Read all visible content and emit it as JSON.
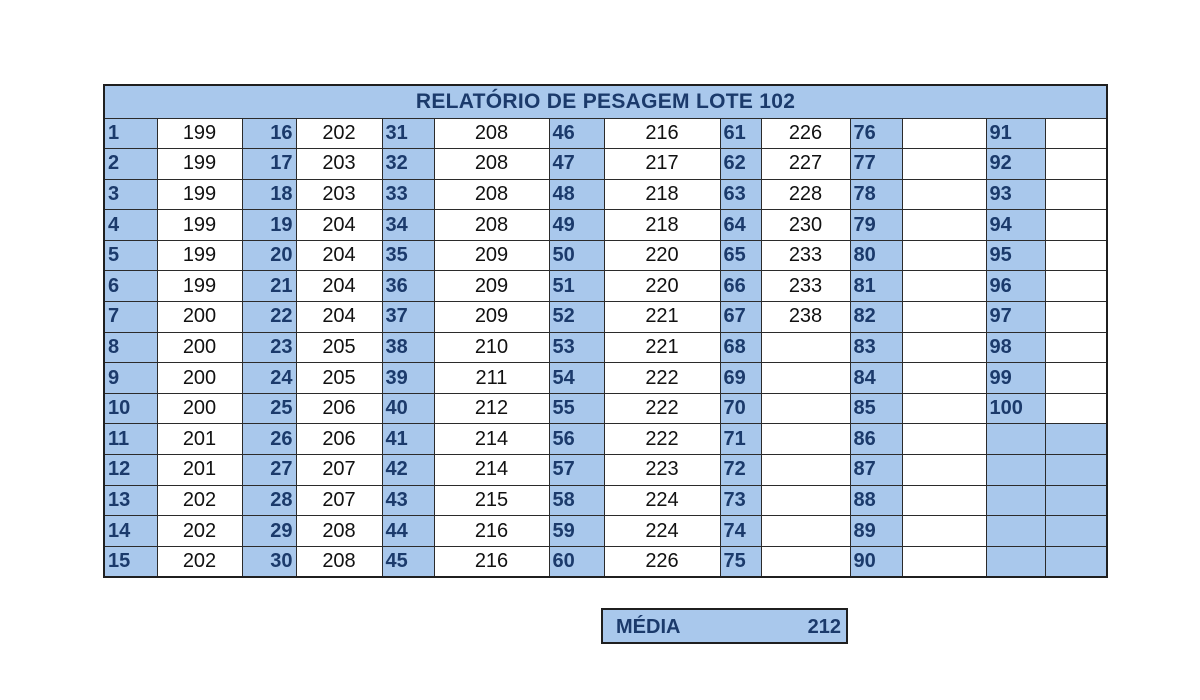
{
  "report": {
    "title": "RELATÓRIO DE PESAGEM LOTE 102",
    "average_label": "MÉDIA",
    "average_value": "212"
  },
  "groups": [
    {
      "ids": [
        "1",
        "2",
        "3",
        "4",
        "5",
        "6",
        "7",
        "8",
        "9",
        "10",
        "11",
        "12",
        "13",
        "14",
        "15"
      ],
      "values": [
        "199",
        "199",
        "199",
        "199",
        "199",
        "199",
        "200",
        "200",
        "200",
        "200",
        "201",
        "201",
        "202",
        "202",
        "202"
      ]
    },
    {
      "ids": [
        "16",
        "17",
        "18",
        "19",
        "20",
        "21",
        "22",
        "23",
        "24",
        "25",
        "26",
        "27",
        "28",
        "29",
        "30"
      ],
      "values": [
        "202",
        "203",
        "203",
        "204",
        "204",
        "204",
        "204",
        "205",
        "205",
        "206",
        "206",
        "207",
        "207",
        "208",
        "208"
      ]
    },
    {
      "ids": [
        "31",
        "32",
        "33",
        "34",
        "35",
        "36",
        "37",
        "38",
        "39",
        "40",
        "41",
        "42",
        "43",
        "44",
        "45"
      ],
      "values": [
        "208",
        "208",
        "208",
        "208",
        "209",
        "209",
        "209",
        "210",
        "211",
        "212",
        "214",
        "214",
        "215",
        "216",
        "216"
      ]
    },
    {
      "ids": [
        "46",
        "47",
        "48",
        "49",
        "50",
        "51",
        "52",
        "53",
        "54",
        "55",
        "56",
        "57",
        "58",
        "59",
        "60"
      ],
      "values": [
        "216",
        "217",
        "218",
        "218",
        "220",
        "220",
        "221",
        "221",
        "222",
        "222",
        "222",
        "223",
        "224",
        "224",
        "226"
      ]
    },
    {
      "ids": [
        "61",
        "62",
        "63",
        "64",
        "65",
        "66",
        "67",
        "68",
        "69",
        "70",
        "71",
        "72",
        "73",
        "74",
        "75"
      ],
      "values": [
        "226",
        "227",
        "228",
        "230",
        "233",
        "233",
        "238",
        "",
        "",
        "",
        "",
        "",
        "",
        "",
        ""
      ]
    },
    {
      "ids": [
        "76",
        "77",
        "78",
        "79",
        "80",
        "81",
        "82",
        "83",
        "84",
        "85",
        "86",
        "87",
        "88",
        "89",
        "90"
      ],
      "values": [
        "",
        "",
        "",
        "",
        "",
        "",
        "",
        "",
        "",
        "",
        "",
        "",
        "",
        "",
        ""
      ]
    },
    {
      "ids": [
        "91",
        "92",
        "93",
        "94",
        "95",
        "96",
        "97",
        "98",
        "99",
        "100",
        "",
        "",
        "",
        "",
        ""
      ],
      "values": [
        "",
        "",
        "",
        "",
        "",
        "",
        "",
        "",
        "",
        "",
        "",
        "",
        "",
        "",
        ""
      ]
    }
  ]
}
